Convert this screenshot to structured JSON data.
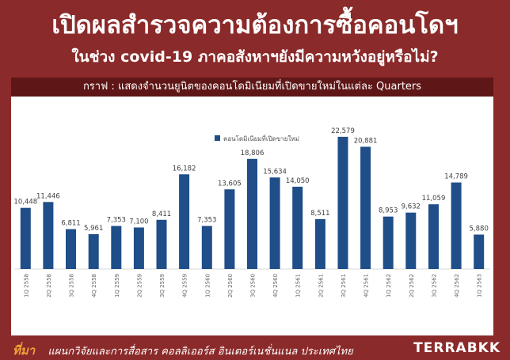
{
  "header": {
    "title": "เปิดผลสำรวจความต้องการซื้อคอนโดฯ",
    "subtitle": "ในช่วง covid-19 ภาคอสังหาฯยังมีความหวังอยู่หรือไม่?"
  },
  "chart_header": "กราฟ : แสดงจำนวนยูนิตของคอนโดมิเนียมที่เปิดขายใหม่ในแต่ละ Quarters",
  "footer": {
    "source_label": "ที่มา",
    "source_text": "แผนกวิจัยและการสื่อสาร คอลลิเออร์ส อินเตอร์เนชั่นแนล ประเทศไทย",
    "logo_main": "TERRA",
    "logo_accent": "BKK"
  },
  "chart_data": {
    "type": "bar",
    "title": "",
    "xlabel": "",
    "ylabel": "",
    "ylim": [
      0,
      25000
    ],
    "grid": false,
    "legend_position": "top-center",
    "bar_color": "#1f4e89",
    "categories": [
      "1Q 2558",
      "2Q 2558",
      "3Q 2558",
      "4Q 2558",
      "1Q 2559",
      "2Q 2559",
      "3Q 2559",
      "4Q 2559",
      "1Q 2560",
      "2Q 2560",
      "3Q 2560",
      "4Q 2560",
      "1Q 2561",
      "2Q 2561",
      "3Q 2561",
      "4Q 2561",
      "1Q 2562",
      "2Q 2562",
      "3Q 2562",
      "4Q 2562",
      "1Q 2563"
    ],
    "series": [
      {
        "name": "คอนโดมิเนียมที่เปิดขายใหม่",
        "values": [
          10448,
          11446,
          6811,
          5961,
          7353,
          7100,
          8411,
          16182,
          7353,
          13605,
          18806,
          15634,
          14050,
          8511,
          22579,
          20881,
          8953,
          9632,
          11059,
          14789,
          5880
        ],
        "labels": [
          "10,448",
          "11,446",
          "6,811",
          "5,961",
          "7,353",
          "7,100",
          "8,411",
          "16,182",
          "7,353",
          "13,605",
          "18,806",
          "15,634",
          "14,050",
          "8,511",
          "22,579",
          "20,881",
          "8,953",
          "9,632",
          "11,059",
          "14,789",
          "5,880"
        ]
      }
    ]
  }
}
